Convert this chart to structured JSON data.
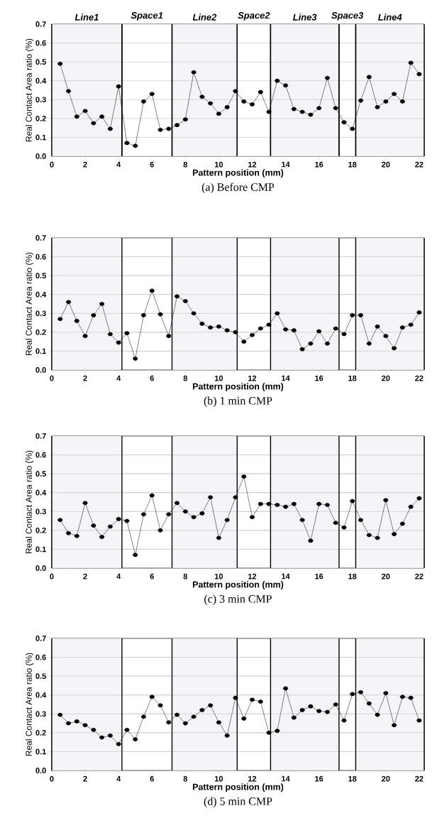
{
  "chart_data": [
    {
      "type": "line",
      "xlabel": "Pattern position (mm)",
      "ylabel": "Real Contact Area ratio (%)",
      "annotations": [
        "(a) Before CMP"
      ],
      "x": [
        0.5,
        1,
        1.5,
        2,
        2.5,
        3,
        3.5,
        4,
        4.5,
        5,
        5.5,
        6,
        6.5,
        7,
        7.5,
        8,
        8.5,
        9,
        9.5,
        10,
        10.5,
        11,
        11.5,
        12,
        12.5,
        13,
        13.5,
        14,
        14.5,
        15,
        15.5,
        16,
        16.5,
        17,
        17.5,
        18,
        18.5,
        19,
        19.5,
        20,
        20.5,
        21,
        21.5,
        22
      ],
      "values": [
        0.49,
        0.345,
        0.21,
        0.24,
        0.175,
        0.21,
        0.145,
        0.37,
        0.07,
        0.055,
        0.29,
        0.33,
        0.14,
        0.145,
        0.165,
        0.195,
        0.445,
        0.315,
        0.28,
        0.225,
        0.26,
        0.345,
        0.29,
        0.275,
        0.34,
        0.235,
        0.4,
        0.375,
        0.25,
        0.235,
        0.22,
        0.255,
        0.415,
        0.255,
        0.18,
        0.145,
        0.295,
        0.42,
        0.26,
        0.29,
        0.33,
        0.29,
        0.495,
        0.435
      ],
      "color": "#000000",
      "marker": "circle",
      "grid": "y",
      "xlim": [
        0,
        22.3
      ],
      "ylim": [
        0,
        0.7
      ],
      "xticks": [
        0,
        2,
        4,
        6,
        8,
        10,
        12,
        14,
        16,
        18,
        20,
        22
      ],
      "yticks": [
        {
          "value": 0,
          "label": "0.0"
        },
        {
          "value": 0.1,
          "label": "0.1"
        },
        {
          "value": 0.2,
          "label": "0.2"
        },
        {
          "value": 0.3,
          "label": "0.3"
        },
        {
          "value": 0.4,
          "label": "0.4"
        },
        {
          "value": 0.5,
          "label": "0.5"
        },
        {
          "value": 0.6,
          "label": "0.6"
        },
        {
          "value": 0.7,
          "label": "0.7"
        }
      ],
      "bands": [
        {
          "axis": "x",
          "from": 0,
          "to": 4.2,
          "label": "Line1",
          "color": "#f4f5f7"
        },
        {
          "axis": "x",
          "from": 4.2,
          "to": 7.2,
          "label": "Space1",
          "color": "#ffffff"
        },
        {
          "axis": "x",
          "from": 7.2,
          "to": 11.1,
          "label": "Line2",
          "color": "#f4f5f7"
        },
        {
          "axis": "x",
          "from": 11.1,
          "to": 13.1,
          "label": "Space2",
          "color": "#ffffff"
        },
        {
          "axis": "x",
          "from": 13.1,
          "to": 17.2,
          "label": "Line3",
          "color": "#f4f5f7"
        },
        {
          "axis": "x",
          "from": 17.2,
          "to": 18.2,
          "label": "Space3",
          "color": "#ffffff"
        },
        {
          "axis": "x",
          "from": 18.2,
          "to": 22.3,
          "label": "Line4",
          "color": "#f4f5f7"
        }
      ]
    },
    {
      "type": "line",
      "xlabel": "Pattern position (mm)",
      "ylabel": "Real Contact Area ratio (%)",
      "annotations": [
        "(b) 1 min CMP"
      ],
      "x": [
        0.5,
        1,
        1.5,
        2,
        2.5,
        3,
        3.5,
        4,
        4.5,
        5,
        5.5,
        6,
        6.5,
        7,
        7.5,
        8,
        8.5,
        9,
        9.5,
        10,
        10.5,
        11,
        11.5,
        12,
        12.5,
        13,
        13.5,
        14,
        14.5,
        15,
        15.5,
        16,
        16.5,
        17,
        17.5,
        18,
        18.5,
        19,
        19.5,
        20,
        20.5,
        21,
        21.5,
        22
      ],
      "values": [
        0.27,
        0.36,
        0.26,
        0.18,
        0.29,
        0.35,
        0.19,
        0.145,
        0.195,
        0.06,
        0.29,
        0.42,
        0.295,
        0.18,
        0.39,
        0.365,
        0.3,
        0.245,
        0.225,
        0.23,
        0.21,
        0.2,
        0.15,
        0.185,
        0.22,
        0.24,
        0.3,
        0.215,
        0.21,
        0.11,
        0.14,
        0.205,
        0.14,
        0.22,
        0.19,
        0.29,
        0.29,
        0.14,
        0.23,
        0.18,
        0.115,
        0.225,
        0.24,
        0.305
      ],
      "color": "#000000",
      "marker": "circle",
      "grid": "y",
      "xlim": [
        0,
        22.3
      ],
      "ylim": [
        0,
        0.7
      ],
      "xticks": [
        0,
        2,
        4,
        6,
        8,
        10,
        12,
        14,
        16,
        18,
        20,
        22
      ],
      "yticks": [
        {
          "value": 0,
          "label": "0.0"
        },
        {
          "value": 0.1,
          "label": "0.1"
        },
        {
          "value": 0.2,
          "label": "0.2"
        },
        {
          "value": 0.3,
          "label": "0.3"
        },
        {
          "value": 0.4,
          "label": "0.4"
        },
        {
          "value": 0.5,
          "label": "0.5"
        },
        {
          "value": 0.6,
          "label": "0.6"
        },
        {
          "value": 0.7,
          "label": "0.7"
        }
      ],
      "bands": [
        {
          "axis": "x",
          "from": 0,
          "to": 4.2,
          "color": "#f4f5f7"
        },
        {
          "axis": "x",
          "from": 7.2,
          "to": 11.1,
          "color": "#f4f5f7"
        },
        {
          "axis": "x",
          "from": 13.1,
          "to": 17.2,
          "color": "#f4f5f7"
        },
        {
          "axis": "x",
          "from": 18.2,
          "to": 22.3,
          "color": "#f4f5f7"
        }
      ]
    },
    {
      "type": "line",
      "xlabel": "Pattern position (mm)",
      "ylabel": "Real Contact Area ratio (%)",
      "annotations": [
        "(c) 3 min CMP"
      ],
      "x": [
        0.5,
        1,
        1.5,
        2,
        2.5,
        3,
        3.5,
        4,
        4.5,
        5,
        5.5,
        6,
        6.5,
        7,
        7.5,
        8,
        8.5,
        9,
        9.5,
        10,
        10.5,
        11,
        11.5,
        12,
        12.5,
        13,
        13.5,
        14,
        14.5,
        15,
        15.5,
        16,
        16.5,
        17,
        17.5,
        18,
        18.5,
        19,
        19.5,
        20,
        20.5,
        21,
        21.5,
        22
      ],
      "values": [
        0.255,
        0.185,
        0.17,
        0.345,
        0.225,
        0.165,
        0.22,
        0.26,
        0.25,
        0.07,
        0.285,
        0.385,
        0.2,
        0.285,
        0.345,
        0.3,
        0.27,
        0.29,
        0.375,
        0.16,
        0.255,
        0.375,
        0.485,
        0.27,
        0.34,
        0.34,
        0.335,
        0.325,
        0.34,
        0.255,
        0.145,
        0.34,
        0.335,
        0.24,
        0.215,
        0.355,
        0.255,
        0.175,
        0.16,
        0.36,
        0.18,
        0.235,
        0.325,
        0.37
      ],
      "color": "#000000",
      "marker": "circle",
      "grid": "y",
      "xlim": [
        0,
        22.3
      ],
      "ylim": [
        0,
        0.7
      ],
      "xticks": [
        0,
        2,
        4,
        6,
        8,
        10,
        12,
        14,
        16,
        18,
        20,
        22
      ],
      "yticks": [
        {
          "value": 0,
          "label": "0.0"
        },
        {
          "value": 0.1,
          "label": "0.1"
        },
        {
          "value": 0.2,
          "label": "0.2"
        },
        {
          "value": 0.3,
          "label": "0.3"
        },
        {
          "value": 0.4,
          "label": "0.4"
        },
        {
          "value": 0.5,
          "label": "0.5"
        },
        {
          "value": 0.6,
          "label": "0.6"
        },
        {
          "value": 0.7,
          "label": "0.7"
        }
      ],
      "bands": [
        {
          "axis": "x",
          "from": 0,
          "to": 4.2,
          "color": "#f4f5f7"
        },
        {
          "axis": "x",
          "from": 7.2,
          "to": 11.1,
          "color": "#f4f5f7"
        },
        {
          "axis": "x",
          "from": 13.1,
          "to": 17.2,
          "color": "#f4f5f7"
        },
        {
          "axis": "x",
          "from": 18.2,
          "to": 22.3,
          "color": "#f4f5f7"
        }
      ]
    },
    {
      "type": "line",
      "xlabel": "Pattern position (mm)",
      "ylabel": "Real Contact Area ratio (%)",
      "annotations": [
        "(d) 5 min CMP"
      ],
      "x": [
        0.5,
        1,
        1.5,
        2,
        2.5,
        3,
        3.5,
        4,
        4.5,
        5,
        5.5,
        6,
        6.5,
        7,
        7.5,
        8,
        8.5,
        9,
        9.5,
        10,
        10.5,
        11,
        11.5,
        12,
        12.5,
        13,
        13.5,
        14,
        14.5,
        15,
        15.5,
        16,
        16.5,
        17,
        17.5,
        18,
        18.5,
        19,
        19.5,
        20,
        20.5,
        21,
        21.5,
        22
      ],
      "values": [
        0.295,
        0.25,
        0.26,
        0.24,
        0.215,
        0.175,
        0.185,
        0.14,
        0.215,
        0.165,
        0.285,
        0.39,
        0.345,
        0.255,
        0.295,
        0.25,
        0.285,
        0.32,
        0.345,
        0.255,
        0.185,
        0.385,
        0.275,
        0.375,
        0.365,
        0.2,
        0.21,
        0.435,
        0.28,
        0.32,
        0.34,
        0.315,
        0.31,
        0.35,
        0.265,
        0.405,
        0.415,
        0.355,
        0.295,
        0.41,
        0.24,
        0.39,
        0.385,
        0.265
      ],
      "color": "#000000",
      "marker": "circle",
      "grid": "y",
      "xlim": [
        0,
        22.3
      ],
      "ylim": [
        0,
        0.7
      ],
      "xticks": [
        0,
        2,
        4,
        6,
        8,
        10,
        12,
        14,
        16,
        18,
        20,
        22
      ],
      "yticks": [
        {
          "value": 0,
          "label": "0.0"
        },
        {
          "value": 0.1,
          "label": "0.1"
        },
        {
          "value": 0.2,
          "label": "0.2"
        },
        {
          "value": 0.3,
          "label": "0.3"
        },
        {
          "value": 0.4,
          "label": "0.4"
        },
        {
          "value": 0.5,
          "label": "0.5"
        },
        {
          "value": 0.6,
          "label": "0.6"
        },
        {
          "value": 0.7,
          "label": "0.7"
        }
      ],
      "bands": [
        {
          "axis": "x",
          "from": 0,
          "to": 4.2,
          "color": "#f4f5f7"
        },
        {
          "axis": "x",
          "from": 7.2,
          "to": 11.1,
          "color": "#f4f5f7"
        },
        {
          "axis": "x",
          "from": 13.1,
          "to": 17.2,
          "color": "#f4f5f7"
        },
        {
          "axis": "x",
          "from": 18.2,
          "to": 22.3,
          "color": "#f4f5f7"
        }
      ]
    }
  ]
}
